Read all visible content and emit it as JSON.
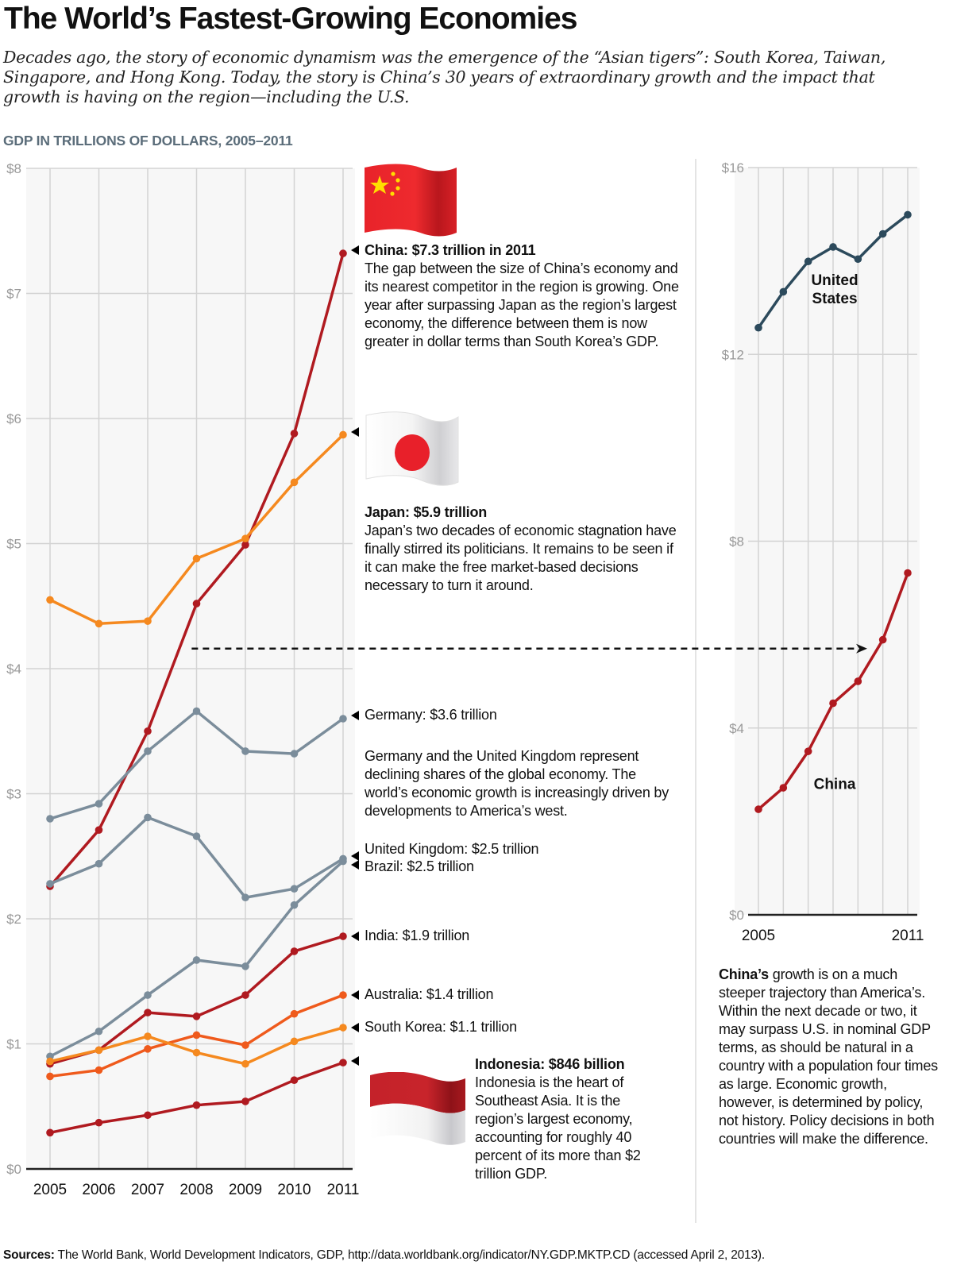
{
  "header": {
    "title": "The World’s Fastest-Growing Economies",
    "subtitle": "Decades ago, the story of economic dynamism was the emergence of the “Asian tigers”: South Korea, Taiwan, Singapore, and Hong Kong. Today, the story is China’s 30 years of extraordinary growth and the impact that growth is having on the region—including the U.S.",
    "chart_label": "GDP IN TRILLIONS OF DOLLARS, 2005–2011"
  },
  "colors": {
    "china_india_indonesia": "#b01a20",
    "japan_korea": "#f5891f",
    "australia": "#ef5a1c",
    "europe_brazil": "#7b8d9b",
    "united_states": "#2c4a5c",
    "grid": "#d3d3d3",
    "plot_bg": "#f7f7f7"
  },
  "annotations": {
    "china_head": "China: $7.3 trillion in 2011",
    "china_body": "The gap between the size of China’s economy and its nearest competitor in the region is growing. One year after surpassing Japan as the region’s largest economy, the difference between them is now greater in dollar terms than South Korea’s GDP.",
    "japan_head": "Japan: $5.9 trillion",
    "japan_body": "Japan’s two decades of economic stagnation have finally stirred its politicians. It remains to be seen if it can make the free market-based decisions necessary to turn it around.",
    "germany_head": "Germany: $3.6 trillion",
    "europe_body": "Germany and the United Kingdom represent declining shares of the global economy. The world’s economic growth is increasingly driven by developments to America’s west.",
    "uk_head": "United Kingdom: $2.5 trillion",
    "brazil_head": "Brazil: $2.5 trillion",
    "india_head": "India: $1.9 trillion",
    "australia_head": "Australia: $1.4 trillion",
    "korea_head": "South Korea: $1.1 trillion",
    "indonesia_head": "Indonesia: $846 billion",
    "indonesia_body": "Indonesia is the heart of Southeast Asia. It is the region’s largest economy, accounting for roughly 40 percent of its more than $2 trillion GDP.",
    "side_bold": "China’s",
    "side_body": " growth is on a much steeper trajectory than America’s. Within the next decade or two, it may surpass U.S. in nominal GDP terms, as should be natural in a country with a population four times as large. Economic growth, however, is determined by policy, not history. Policy decisions in both countries will make the difference."
  },
  "flags": {
    "china": "china-flag-icon",
    "japan": "japan-flag-icon",
    "indonesia": "indonesia-flag-icon"
  },
  "footer": {
    "sources_label": "Sources:",
    "sources_text": " The World Bank, World Development Indicators, GDP, http://data.worldbank.org/indicator/NY.GDP.MKTP.CD (accessed April 2, 2013)."
  },
  "chart_data": [
    {
      "type": "line",
      "title": "GDP IN TRILLIONS OF DOLLARS, 2005–2011",
      "xlabel": "",
      "ylabel": "",
      "x": [
        2005,
        2006,
        2007,
        2008,
        2009,
        2010,
        2011
      ],
      "x_tick_labels": [
        "2005",
        "2006",
        "2007",
        "2008",
        "2009",
        "2010",
        "2011"
      ],
      "y_tick_labels": [
        "$0",
        "$1",
        "$2",
        "$3",
        "$4",
        "$5",
        "$6",
        "$7",
        "$8"
      ],
      "ylim": [
        0,
        8
      ],
      "grid": true,
      "series": [
        {
          "name": "China",
          "color_key": "china_india_indonesia",
          "values": [
            2.26,
            2.71,
            3.5,
            4.52,
            4.99,
            5.88,
            7.32
          ]
        },
        {
          "name": "Japan",
          "color_key": "japan_korea",
          "values": [
            4.55,
            4.36,
            4.38,
            4.88,
            5.04,
            5.49,
            5.87
          ]
        },
        {
          "name": "Germany",
          "color_key": "europe_brazil",
          "values": [
            2.8,
            2.92,
            3.34,
            3.66,
            3.34,
            3.32,
            3.6
          ]
        },
        {
          "name": "United Kingdom",
          "color_key": "europe_brazil",
          "values": [
            2.28,
            2.44,
            2.81,
            2.66,
            2.17,
            2.24,
            2.48
          ]
        },
        {
          "name": "Brazil",
          "color_key": "europe_brazil",
          "values": [
            0.9,
            1.1,
            1.39,
            1.67,
            1.62,
            2.11,
            2.46
          ]
        },
        {
          "name": "India",
          "color_key": "china_india_indonesia",
          "values": [
            0.84,
            0.95,
            1.25,
            1.22,
            1.39,
            1.74,
            1.86
          ]
        },
        {
          "name": "Australia",
          "color_key": "australia",
          "values": [
            0.74,
            0.79,
            0.96,
            1.07,
            0.99,
            1.24,
            1.39
          ]
        },
        {
          "name": "South Korea",
          "color_key": "japan_korea",
          "values": [
            0.86,
            0.95,
            1.06,
            0.93,
            0.84,
            1.02,
            1.13
          ]
        },
        {
          "name": "Indonesia",
          "color_key": "china_india_indonesia",
          "values": [
            0.29,
            0.37,
            0.43,
            0.51,
            0.54,
            0.71,
            0.85
          ]
        }
      ],
      "reference_line": {
        "style": "dashed-arrow",
        "y_value": 4.16,
        "from_x": 2007.9,
        "points_to": "right-chart"
      }
    },
    {
      "type": "line",
      "title": "",
      "x": [
        2005,
        2006,
        2007,
        2008,
        2009,
        2010,
        2011
      ],
      "x_tick_labels": [
        "2005",
        "2011"
      ],
      "y_tick_labels": [
        "$0",
        "$4",
        "$8",
        "$12",
        "$16"
      ],
      "ylim": [
        0,
        16
      ],
      "grid": true,
      "series": [
        {
          "name": "United States",
          "label_lines": [
            "United",
            "States"
          ],
          "color_key": "united_states",
          "values": [
            12.57,
            13.34,
            13.99,
            14.3,
            14.04,
            14.58,
            14.99
          ]
        },
        {
          "name": "China",
          "label_lines": [
            "China"
          ],
          "color_key": "china_india_indonesia",
          "values": [
            2.26,
            2.72,
            3.5,
            4.53,
            5.0,
            5.89,
            7.32
          ]
        }
      ]
    }
  ]
}
